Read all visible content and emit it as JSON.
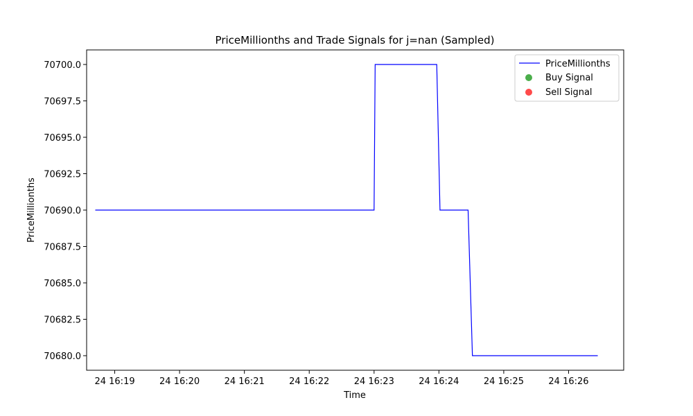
{
  "chart_data": {
    "type": "line",
    "title": "PriceMillionths and Trade Signals for j=nan (Sampled)",
    "xlabel": "Time",
    "ylabel": "PriceMillionths",
    "x_ticks": [
      "24 16:19",
      "24 16:20",
      "24 16:21",
      "24 16:22",
      "24 16:23",
      "24 16:24",
      "24 16:25",
      "24 16:26"
    ],
    "y_ticks": [
      "70680.0",
      "70682.5",
      "70685.0",
      "70687.5",
      "70690.0",
      "70692.5",
      "70695.0",
      "70697.5",
      "70700.0"
    ],
    "xlim": [
      "16:18:34",
      "16:26:51"
    ],
    "ylim": [
      70679.0,
      70701.0
    ],
    "series": [
      {
        "name": "PriceMillionths",
        "color": "#0000ff",
        "x": [
          "16:18:42",
          "16:23:00",
          "16:23:01",
          "16:23:58",
          "16:24:01",
          "16:24:27",
          "16:24:31",
          "16:26:27"
        ],
        "y": [
          70690.0,
          70690.0,
          70700.0,
          70700.0,
          70690.0,
          70690.0,
          70680.0,
          70680.0
        ]
      }
    ],
    "buy_signals": [],
    "sell_signals": [],
    "legend": {
      "placement": "top-right",
      "entries": [
        {
          "label": "PriceMillionths",
          "marker": "line",
          "color": "#0000ff"
        },
        {
          "label": "Buy Signal",
          "marker": "dot",
          "color": "#2ca02c"
        },
        {
          "label": "Sell Signal",
          "marker": "dot",
          "color": "#ff2a2a"
        }
      ]
    },
    "grid": false
  }
}
